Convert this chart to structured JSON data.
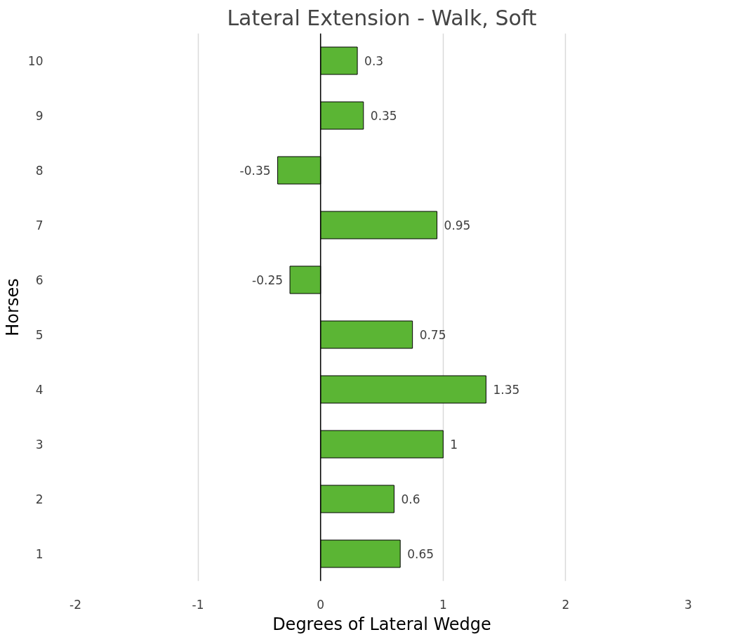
{
  "chart_data": {
    "type": "bar",
    "orientation": "horizontal",
    "title": "Lateral Extension - Walk, Soft",
    "xlabel": "Degrees of Lateral Wedge",
    "ylabel": "Horses",
    "categories": [
      "10",
      "9",
      "8",
      "7",
      "6",
      "5",
      "4",
      "3",
      "2",
      "1"
    ],
    "values": [
      0.3,
      0.35,
      -0.35,
      0.95,
      -0.25,
      0.75,
      1.35,
      1,
      0.6,
      0.65
    ],
    "color": "#5bb534",
    "xlim": [
      -2,
      3
    ],
    "xticks": [
      -2,
      -1,
      0,
      1,
      2,
      3
    ],
    "grid": "x",
    "data_labels": true
  }
}
